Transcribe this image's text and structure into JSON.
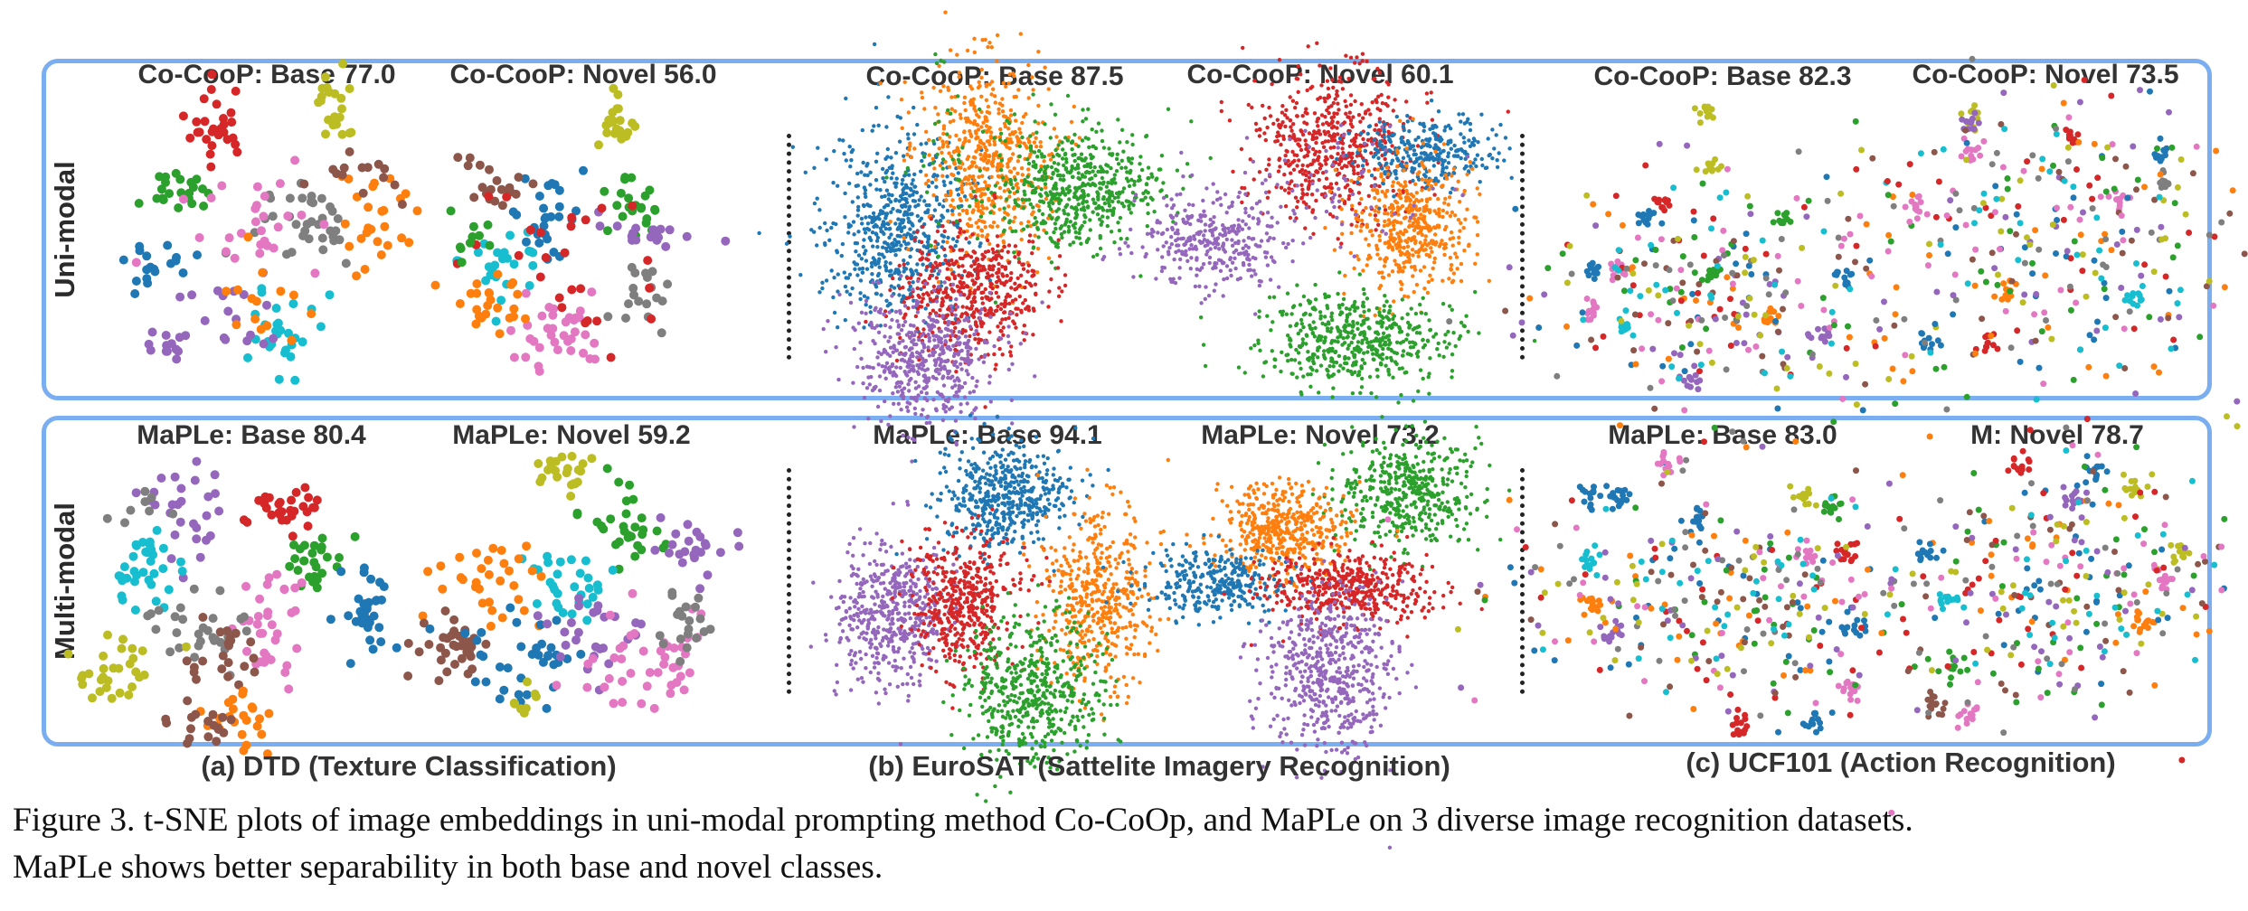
{
  "row_labels": {
    "uni": "Uni-modal",
    "multi": "Multi-modal"
  },
  "plot_titles": {
    "uni": [
      "Co-CooP: Base 77.0",
      "Co-CooP: Novel  56.0",
      "Co-CooP: Base 87.5",
      "Co-CooP: Novel  60.1",
      "Co-CooP: Base 82.3",
      "Co-CooP: Novel  73.5"
    ],
    "multi": [
      "MaPLe: Base 80.4",
      "MaPLe: Novel 59.2",
      "MaPLe: Base 94.1",
      "MaPLe: Novel 73.2",
      "MaPLe: Base 83.0",
      "M: Novel 78.7"
    ]
  },
  "group_captions": [
    "(a) DTD (Texture Classification)",
    "(b) EuroSAT (Sattelite Imagery Recognition)",
    "(c) UCF101 (Action Recognition)"
  ],
  "figure_caption": {
    "line1": "Figure 3. t-SNE plots of image embeddings in uni-modal prompting method Co-CoOp, and MaPLe on 3 diverse image recognition datasets.",
    "line2": "MaPLe shows better separability in both base and novel classes."
  },
  "colors": {
    "border": "#7aaef0",
    "palette": [
      "#1f77b4",
      "#ff7f0e",
      "#2ca02c",
      "#d62728",
      "#9467bd",
      "#8c564b",
      "#e377c2",
      "#7f7f7f",
      "#bcbd22",
      "#17becf"
    ]
  }
}
